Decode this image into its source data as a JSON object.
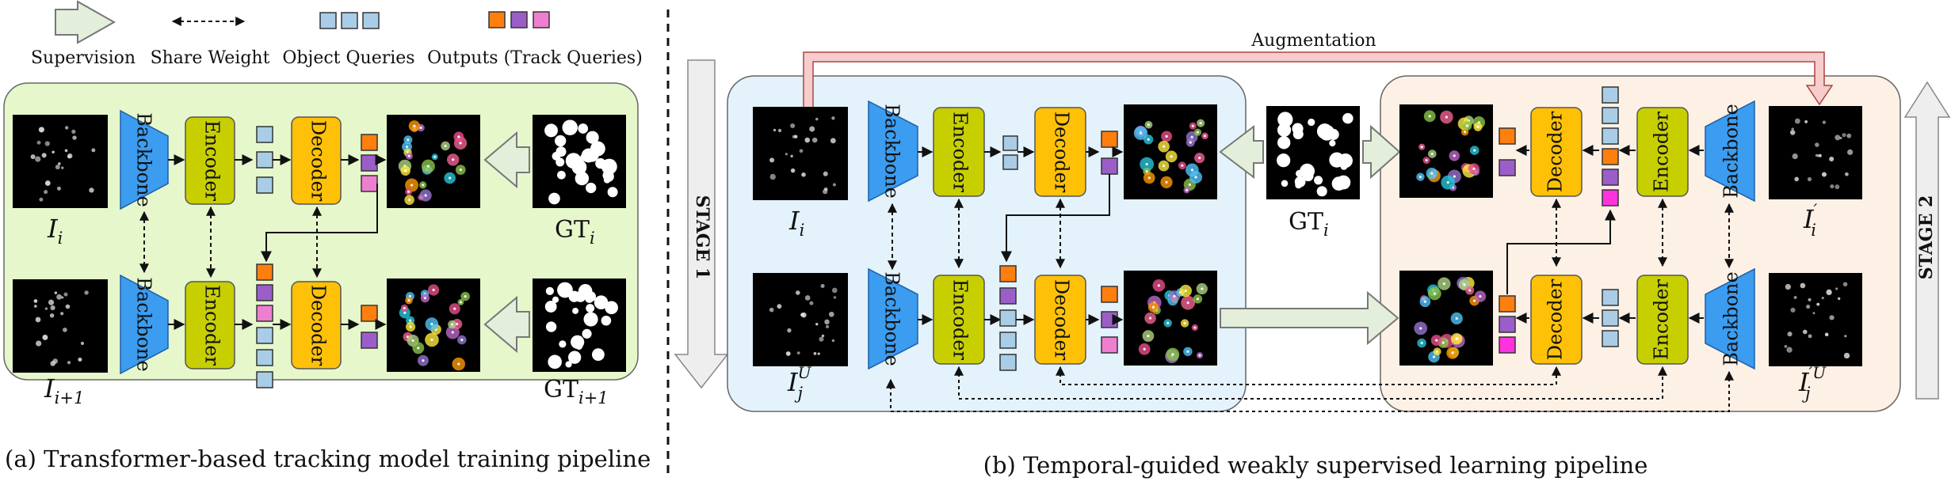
{
  "legend": {
    "supervision": "Supervision",
    "share_weight": "Share Weight",
    "object_queries": "Object Queries",
    "outputs": "Outputs (Track Queries)"
  },
  "modules": {
    "backbone": "Backbone",
    "encoder": "Encoder",
    "decoder": "Decoder"
  },
  "labels": {
    "I": "I",
    "i": "i",
    "i_plus_1": "i+1",
    "GT": "GT",
    "j": "j",
    "U": "U",
    "prime": "′"
  },
  "panel_b": {
    "augmentation": "Augmentation",
    "stage1": "STAGE 1",
    "stage2": "STAGE 2"
  },
  "captions": {
    "a": "(a) Transformer-based tracking model training pipeline",
    "b": "(b) Temporal-guided weakly supervised learning pipeline"
  },
  "colors": {
    "panel_a_bg": "#e6f7cc",
    "panel_b_left_bg": "#e3f2fb",
    "panel_b_right_bg": "#fdf1e6",
    "backbone": "#3b9cf0",
    "encoder": "#c7cf00",
    "decoder": "#ffc107",
    "query_blue": "#a9cde6",
    "query_orange": "#ff7f0e",
    "query_purple": "#9b5ec9",
    "query_pink": "#ee7fd0",
    "query_magenta": "#ff33dd",
    "big_arrow": "#e3efdb",
    "aug_arrow": "#f6cccc",
    "stage_arrow": "#eeeeee"
  }
}
